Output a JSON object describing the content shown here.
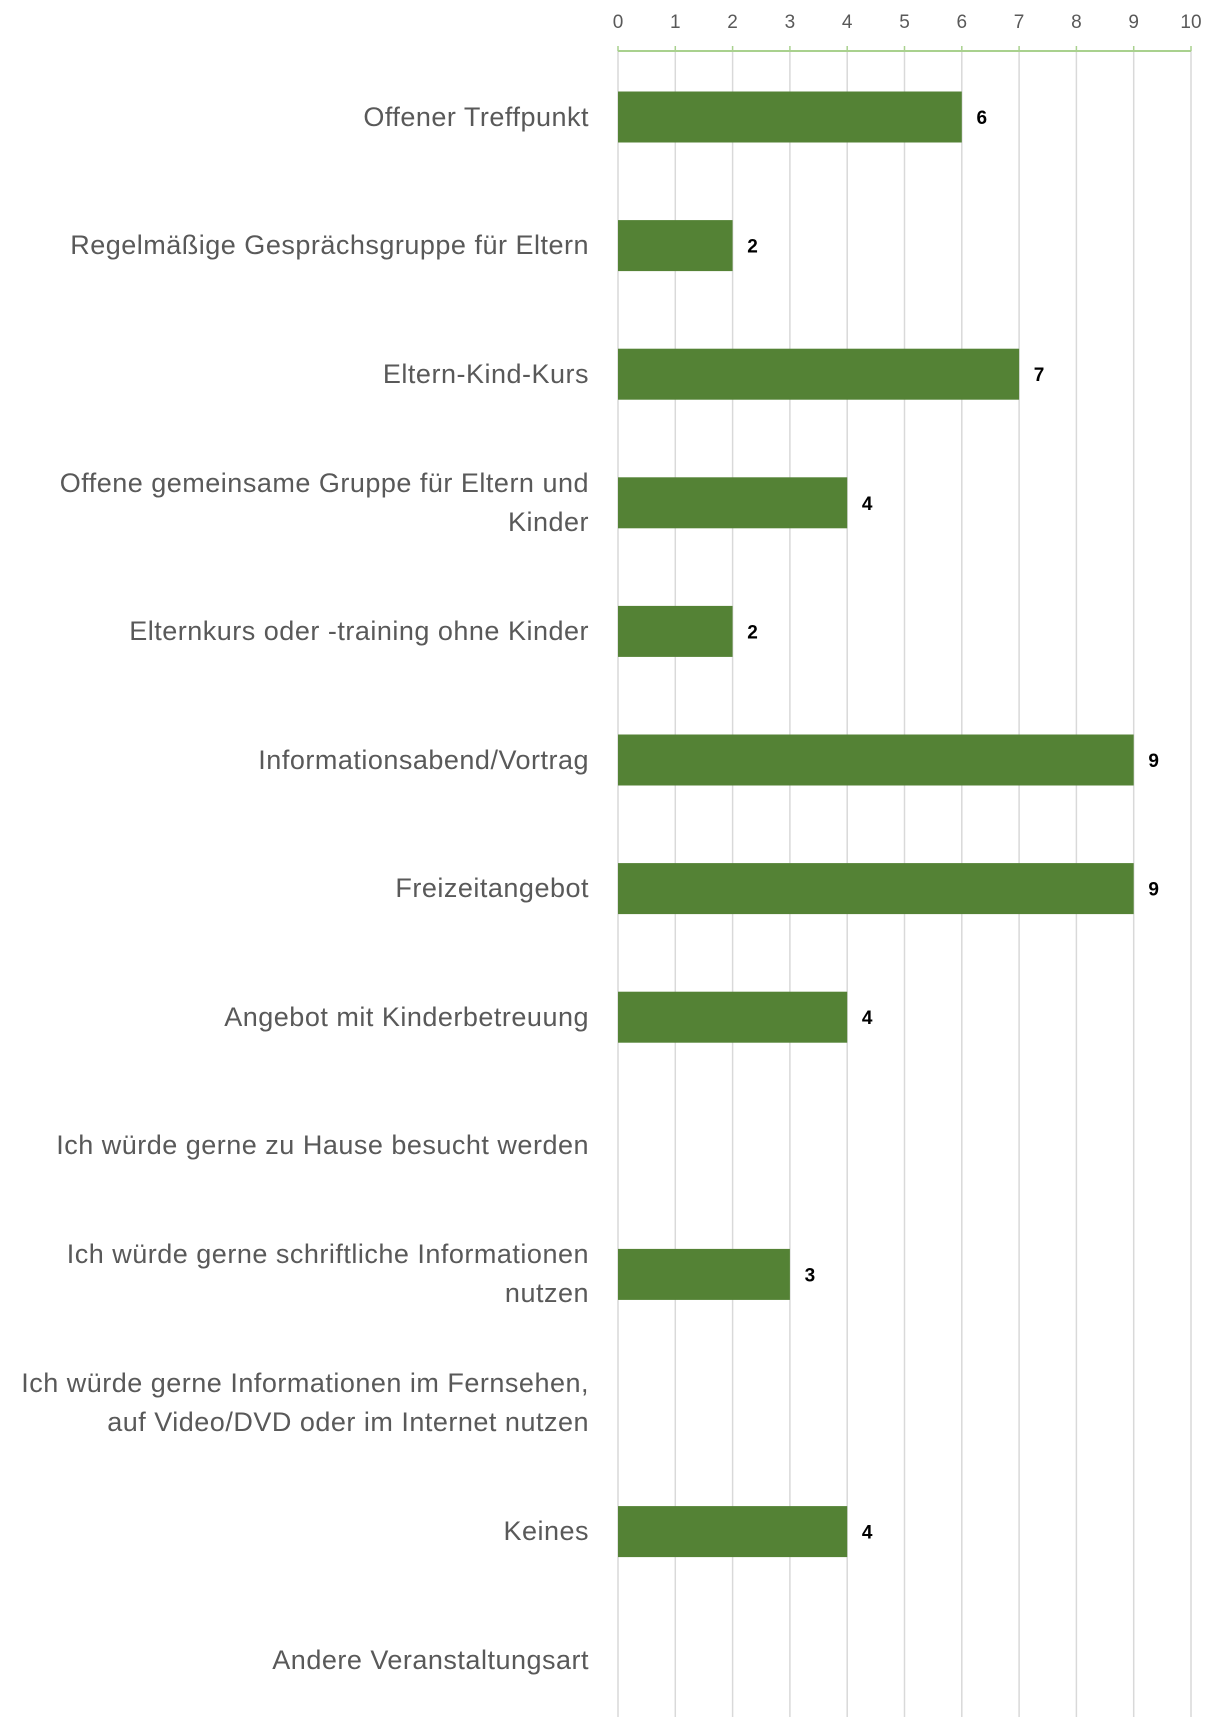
{
  "chart_data": {
    "type": "bar",
    "orientation": "horizontal",
    "title": "",
    "xlabel": "",
    "ylabel": "",
    "xlim": [
      0,
      10
    ],
    "ticks": [
      "0",
      "1",
      "2",
      "3",
      "4",
      "5",
      "6",
      "7",
      "8",
      "9",
      "10"
    ],
    "x_axis_position": "top",
    "grid": true,
    "legend": "none",
    "colors": {
      "bar": "#548235",
      "axis": "#a9d18e",
      "grid": "#d9d9d9"
    },
    "categories": [
      "Offener Treffpunkt",
      "Regelmäßige Gesprächsgruppe für Eltern",
      "Eltern-Kind-Kurs",
      "Offene gemeinsame Gruppe für Eltern und Kinder",
      "Elternkurs oder -training ohne Kinder",
      "Informationsabend/Vortrag",
      "Freizeitangebot",
      "Angebot mit Kinderbetreuung",
      "Ich würde gerne zu Hause besucht werden",
      "Ich würde gerne schriftliche Informationen nutzen",
      "Ich würde gerne Informationen im Fernsehen, auf Video/DVD oder im Internet nutzen",
      "Keines",
      "Andere Veranstaltungsart"
    ],
    "values": [
      6,
      2,
      7,
      4,
      2,
      9,
      9,
      4,
      0,
      3,
      0,
      4,
      0
    ],
    "data_labels": [
      "6",
      "2",
      "7",
      "4",
      "2",
      "9",
      "9",
      "4",
      "",
      "3",
      "",
      "4",
      ""
    ]
  }
}
